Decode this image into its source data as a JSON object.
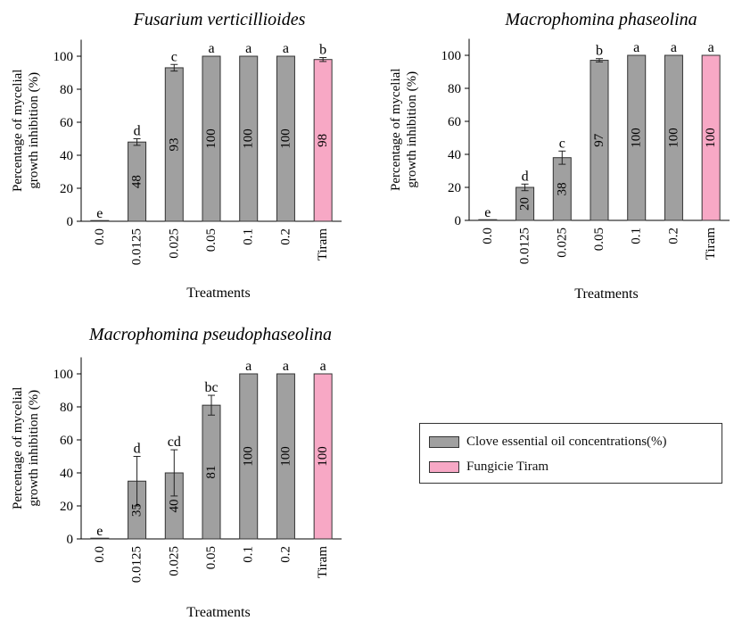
{
  "colors": {
    "clove": "#a0a0a0",
    "tiram": "#f7a8c5",
    "stroke": "#333333"
  },
  "legend": {
    "items": [
      {
        "label": "Clove essential oil concentrations(%)",
        "color": "#a0a0a0"
      },
      {
        "label": "Fungicie Tiram",
        "color": "#f7a8c5"
      }
    ]
  },
  "chart_data": [
    {
      "type": "bar",
      "title": "Fusarium verticillioides",
      "xlabel": "Treatments",
      "ylabel": "Percentage of mycelial growth inhibition (%)",
      "ylim": [
        0,
        110
      ],
      "yticks": [
        0,
        20,
        40,
        60,
        80,
        100
      ],
      "categories": [
        "0.0",
        "0.0125",
        "0.025",
        "0.05",
        "0.1",
        "0.2",
        "Tiram"
      ],
      "values": [
        0,
        48,
        93,
        100,
        100,
        100,
        98
      ],
      "errors": [
        0,
        2,
        2,
        0,
        0,
        0,
        1.2
      ],
      "value_labels": [
        "",
        "48",
        "93",
        "100",
        "100",
        "100",
        "98"
      ],
      "letters": [
        "e",
        "d",
        "c",
        "a",
        "a",
        "a",
        "b"
      ],
      "tiram_index": 6
    },
    {
      "type": "bar",
      "title": "Macrophomina phaseolina",
      "xlabel": "Treatments",
      "ylabel": "Percentage of mycelial growth inhibition (%)",
      "ylim": [
        0,
        110
      ],
      "yticks": [
        0,
        20,
        40,
        60,
        80,
        100
      ],
      "categories": [
        "0.0",
        "0.0125",
        "0.025",
        "0.05",
        "0.1",
        "0.2",
        "Tiram"
      ],
      "values": [
        0,
        20,
        38,
        97,
        100,
        100,
        100
      ],
      "errors": [
        0,
        2,
        4,
        1,
        0,
        0,
        0
      ],
      "value_labels": [
        "",
        "20",
        "38",
        "97",
        "100",
        "100",
        "100"
      ],
      "letters": [
        "e",
        "d",
        "c",
        "b",
        "a",
        "a",
        "a"
      ],
      "tiram_index": 6
    },
    {
      "type": "bar",
      "title": "Macrophomina pseudophaseolina",
      "xlabel": "Treatments",
      "ylabel": "Percentage of mycelial growth inhibition (%)",
      "ylim": [
        0,
        110
      ],
      "yticks": [
        0,
        20,
        40,
        60,
        80,
        100
      ],
      "categories": [
        "0.0",
        "0.0125",
        "0.025",
        "0.05",
        "0.1",
        "0.2",
        "Tiram"
      ],
      "values": [
        0,
        35,
        40,
        81,
        100,
        100,
        100
      ],
      "errors": [
        0,
        15,
        14,
        6,
        0,
        0,
        0
      ],
      "value_labels": [
        "",
        "35",
        "40",
        "81",
        "100",
        "100",
        "100"
      ],
      "letters": [
        "e",
        "d",
        "cd",
        "bc",
        "a",
        "a",
        "a"
      ],
      "tiram_index": 6
    }
  ]
}
